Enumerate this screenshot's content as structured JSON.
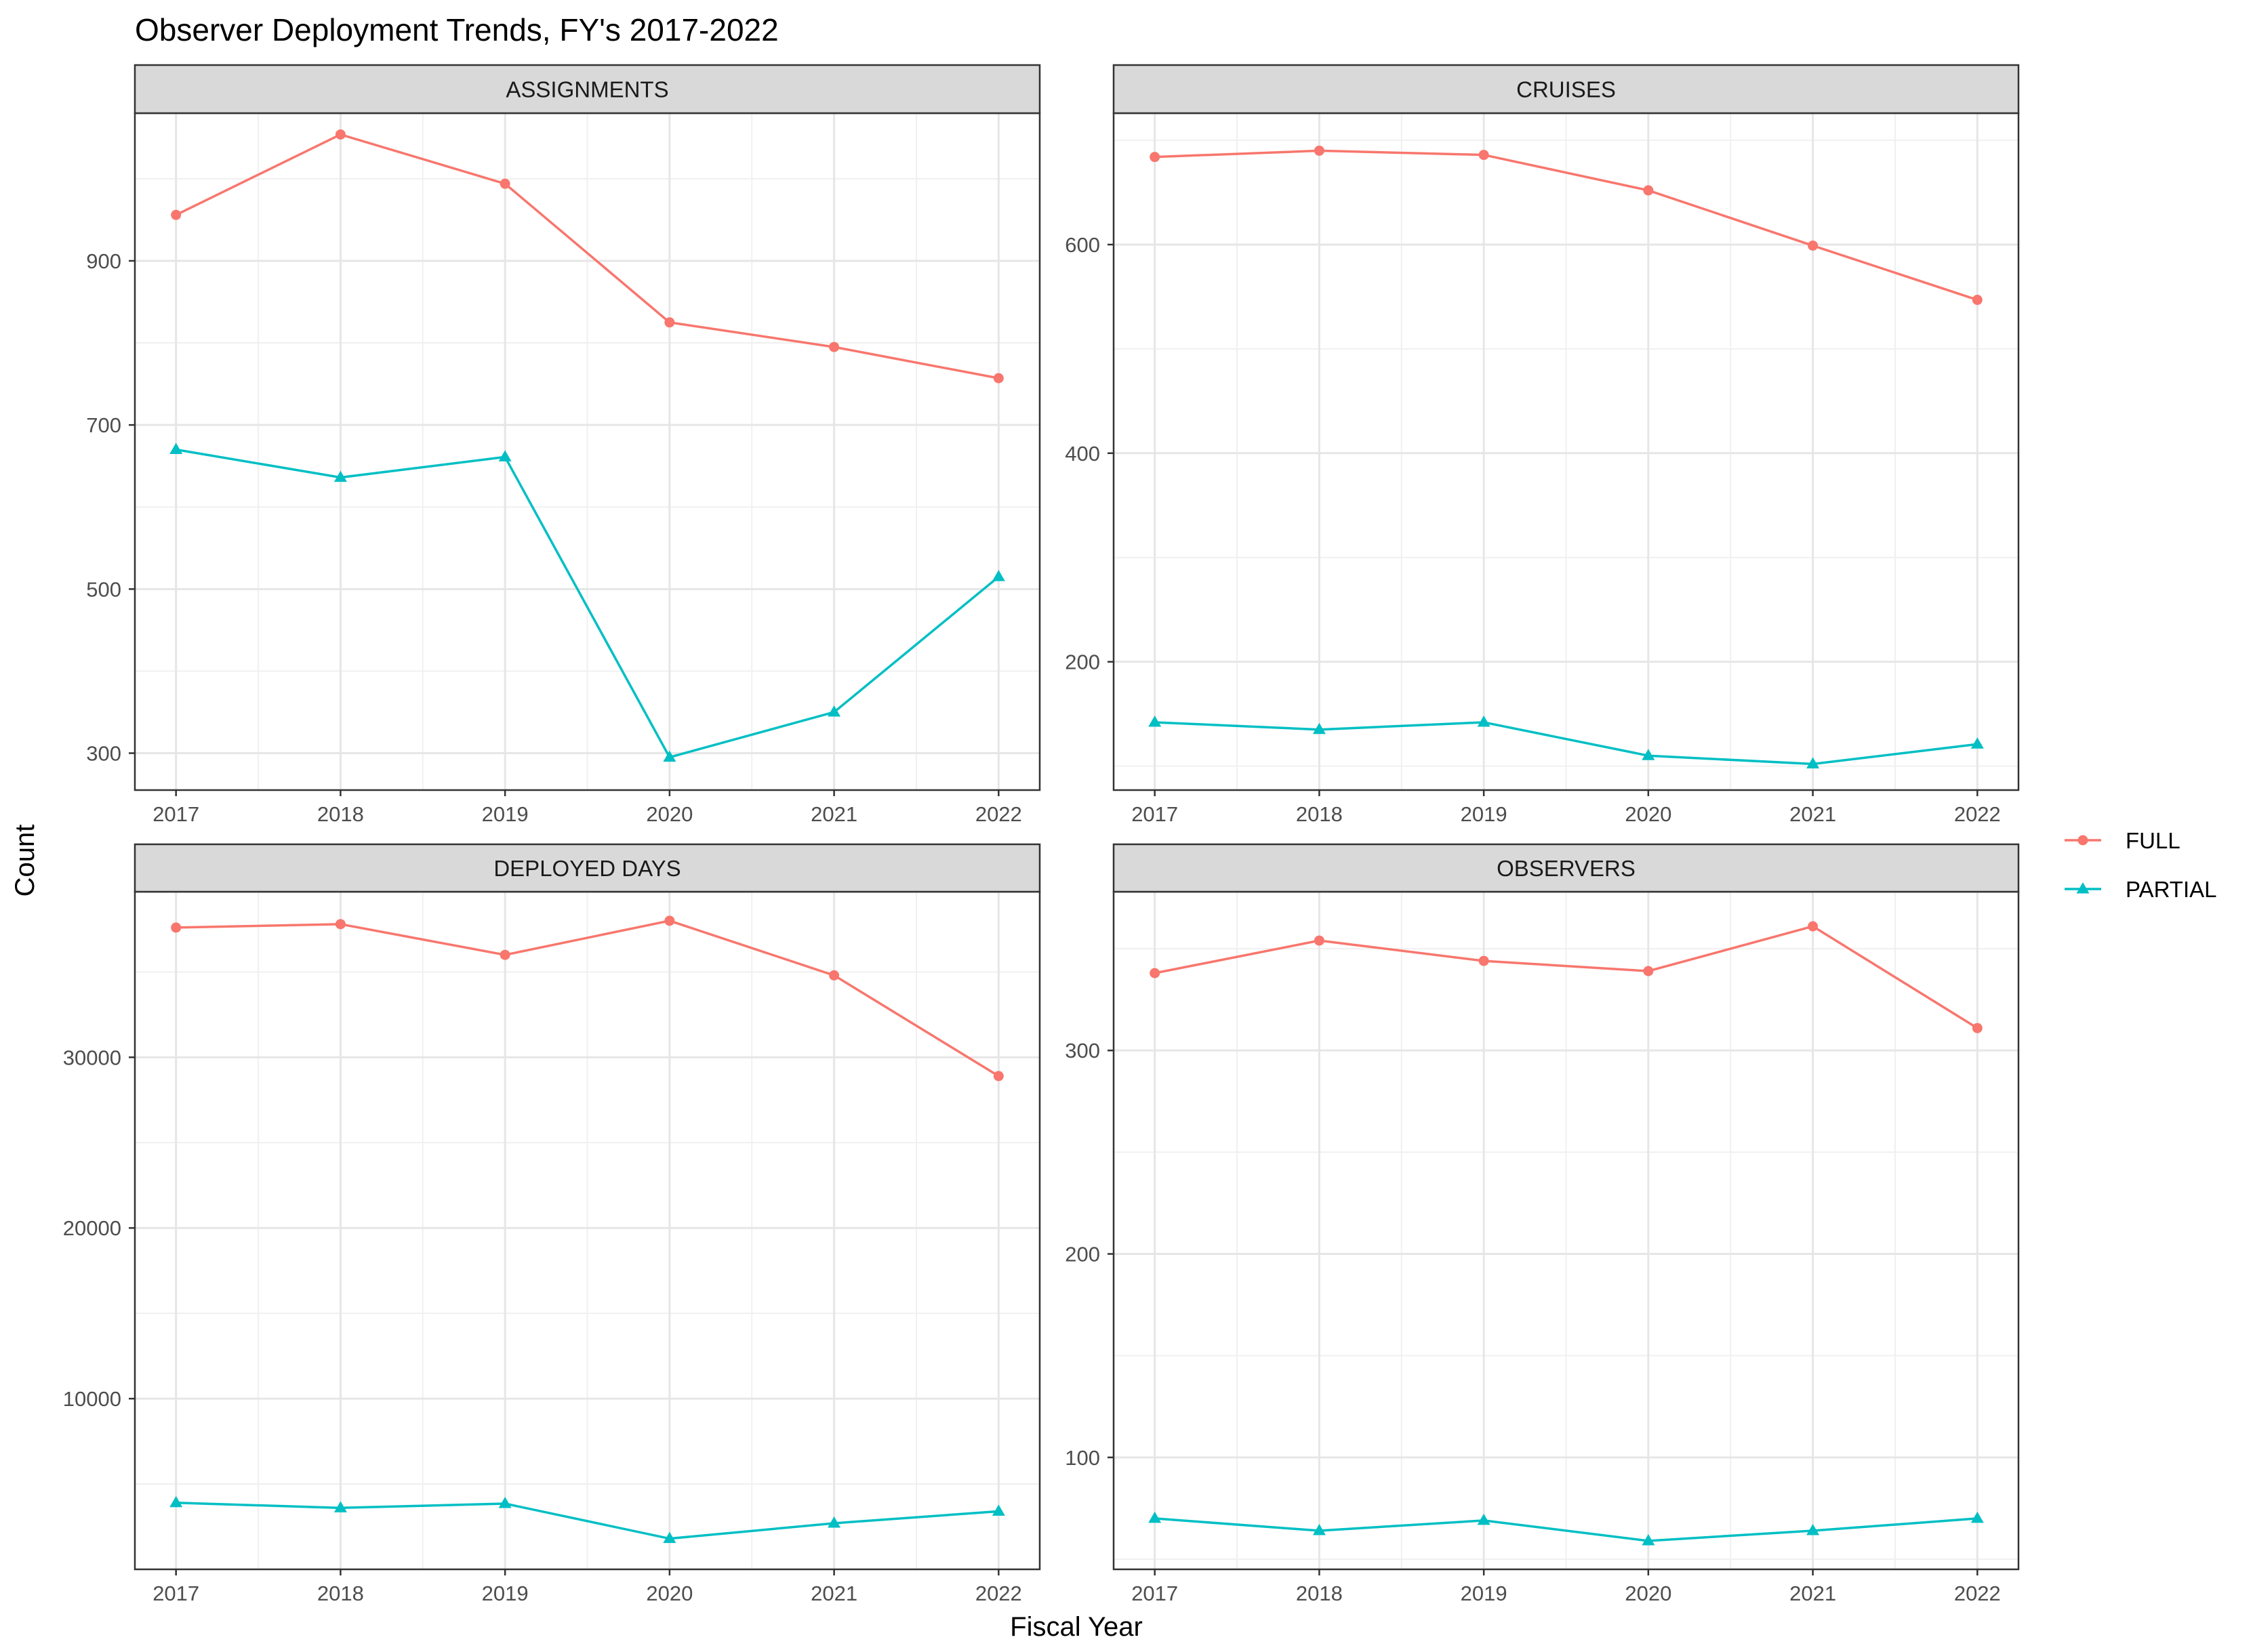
{
  "chart_data": {
    "type": "line",
    "title": "Observer Deployment Trends, FY's 2017-2022",
    "xlabel": "Fiscal Year",
    "ylabel": "Count",
    "grid": true,
    "legend_position": "right",
    "x": [
      2017,
      2018,
      2019,
      2020,
      2021,
      2022
    ],
    "legend": [
      {
        "name": "FULL",
        "color": "#F8766D",
        "marker": "circle"
      },
      {
        "name": "PARTIAL",
        "color": "#00BFC4",
        "marker": "triangle"
      }
    ],
    "panels": [
      {
        "label": "ASSIGNMENTS",
        "ylim": [
          255,
          1080
        ],
        "yticks": [
          300,
          500,
          700,
          900
        ],
        "series": [
          {
            "name": "FULL",
            "values": [
              956,
              1054,
              994,
              825,
              795,
              757
            ]
          },
          {
            "name": "PARTIAL",
            "values": [
              670,
              636,
              661,
              295,
              350,
              515
            ]
          }
        ]
      },
      {
        "label": "CRUISES",
        "ylim": [
          77,
          726
        ],
        "yticks": [
          200,
          400,
          600
        ],
        "series": [
          {
            "name": "FULL",
            "values": [
              684,
              690,
              686,
              652,
              599,
              547
            ]
          },
          {
            "name": "PARTIAL",
            "values": [
              142,
              135,
              142,
              110,
              102,
              121
            ]
          }
        ]
      },
      {
        "label": "DEPLOYED DAYS",
        "ylim": [
          0,
          39700
        ],
        "yticks": [
          10000,
          20000,
          30000
        ],
        "series": [
          {
            "name": "FULL",
            "values": [
              37600,
              37800,
              36000,
              38000,
              34800,
              28900
            ]
          },
          {
            "name": "PARTIAL",
            "values": [
              3900,
              3600,
              3850,
              1800,
              2700,
              3400
            ]
          }
        ]
      },
      {
        "label": "OBSERVERS",
        "ylim": [
          45,
          378
        ],
        "yticks": [
          100,
          200,
          300
        ],
        "series": [
          {
            "name": "FULL",
            "values": [
              338,
              354,
              344,
              339,
              361,
              311
            ]
          },
          {
            "name": "PARTIAL",
            "values": [
              70,
              64,
              69,
              59,
              64,
              70
            ]
          }
        ]
      }
    ]
  }
}
